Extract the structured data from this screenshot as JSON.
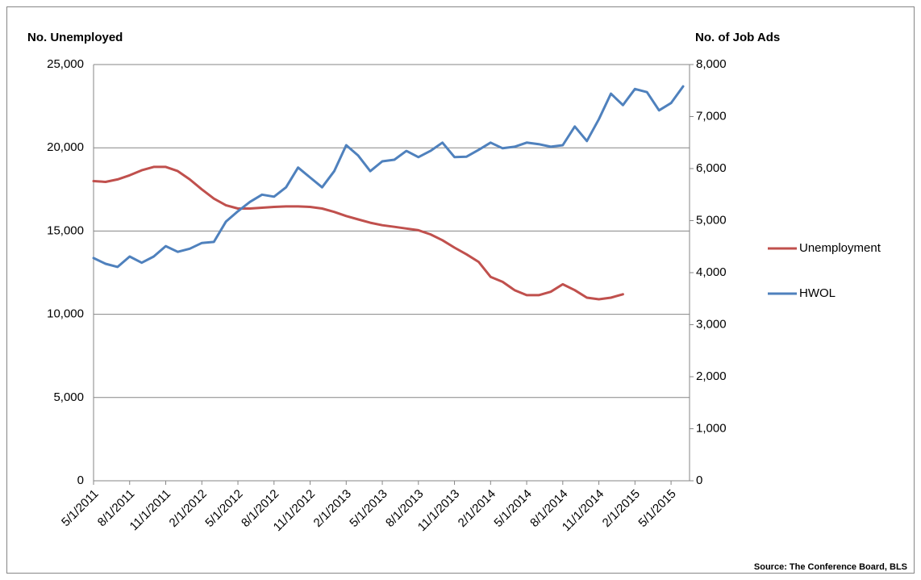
{
  "chart_data": {
    "type": "line",
    "y_label": "No. Unemployed",
    "y2_label": "No. of Job Ads",
    "source": "Source: The Conference Board, BLS",
    "categories": [
      "5/1/2011",
      null,
      null,
      "8/1/2011",
      null,
      null,
      "11/1/2011",
      null,
      null,
      "2/1/2012",
      null,
      null,
      "5/1/2012",
      null,
      null,
      "8/1/2012",
      null,
      null,
      "11/1/2012",
      null,
      null,
      "2/1/2013",
      null,
      null,
      "5/1/2013",
      null,
      null,
      "8/1/2013",
      null,
      null,
      "11/1/2013",
      null,
      null,
      "2/1/2014",
      null,
      null,
      "5/1/2014",
      null,
      null,
      "8/1/2014",
      null,
      null,
      "11/1/2014",
      null,
      null,
      "2/1/2015",
      null,
      null,
      "5/1/2015",
      null
    ],
    "series": [
      {
        "name": "Unemployment",
        "color": "#c0504d",
        "axis": "y",
        "values": [
          18000,
          17950,
          18100,
          18350,
          18650,
          18850,
          18850,
          18600,
          18100,
          17500,
          16950,
          16550,
          16350,
          16350,
          16400,
          16450,
          16480,
          16480,
          16450,
          16350,
          16150,
          15900,
          15700,
          15500,
          15350,
          15250,
          15150,
          15050,
          14800,
          14450,
          14000,
          13600,
          13150,
          12250,
          11950,
          11450,
          11150,
          11150,
          11350,
          11800,
          11450,
          11000,
          10900,
          11000,
          11200,
          null,
          null,
          null,
          null,
          null
        ]
      },
      {
        "name": "HWOL",
        "color": "#4f81bd",
        "axis": "y2",
        "values": [
          4280,
          4170,
          4110,
          4310,
          4190,
          4310,
          4510,
          4400,
          4460,
          4570,
          4590,
          4980,
          5180,
          5360,
          5500,
          5460,
          5640,
          6020,
          5830,
          5640,
          5950,
          6450,
          6250,
          5950,
          6140,
          6170,
          6340,
          6220,
          6340,
          6500,
          6220,
          6230,
          6360,
          6500,
          6390,
          6420,
          6500,
          6470,
          6420,
          6450,
          6810,
          6530,
          6950,
          7440,
          7220,
          7530,
          7470,
          7120,
          7260,
          7580
        ]
      }
    ],
    "ylim": [
      0,
      25000
    ],
    "yticks": [
      0,
      {
        "value": 5000,
        "label": "5,000"
      },
      {
        "value": 10000,
        "label": "10,000"
      },
      {
        "value": 15000,
        "label": "15,000"
      },
      {
        "value": 20000,
        "label": "20,000"
      },
      {
        "value": 25000,
        "label": "25,000"
      }
    ],
    "y2lim": [
      0,
      8000
    ],
    "y2ticks": [
      0,
      {
        "value": 1000,
        "label": "1,000"
      },
      {
        "value": 2000,
        "label": "2,000"
      },
      {
        "value": 3000,
        "label": "3,000"
      },
      {
        "value": 4000,
        "label": "4,000"
      },
      {
        "value": 5000,
        "label": "5,000"
      },
      {
        "value": 6000,
        "label": "6,000"
      },
      {
        "value": 7000,
        "label": "7,000"
      },
      {
        "value": 8000,
        "label": "8,000"
      }
    ],
    "grid": true,
    "legend": "right"
  }
}
